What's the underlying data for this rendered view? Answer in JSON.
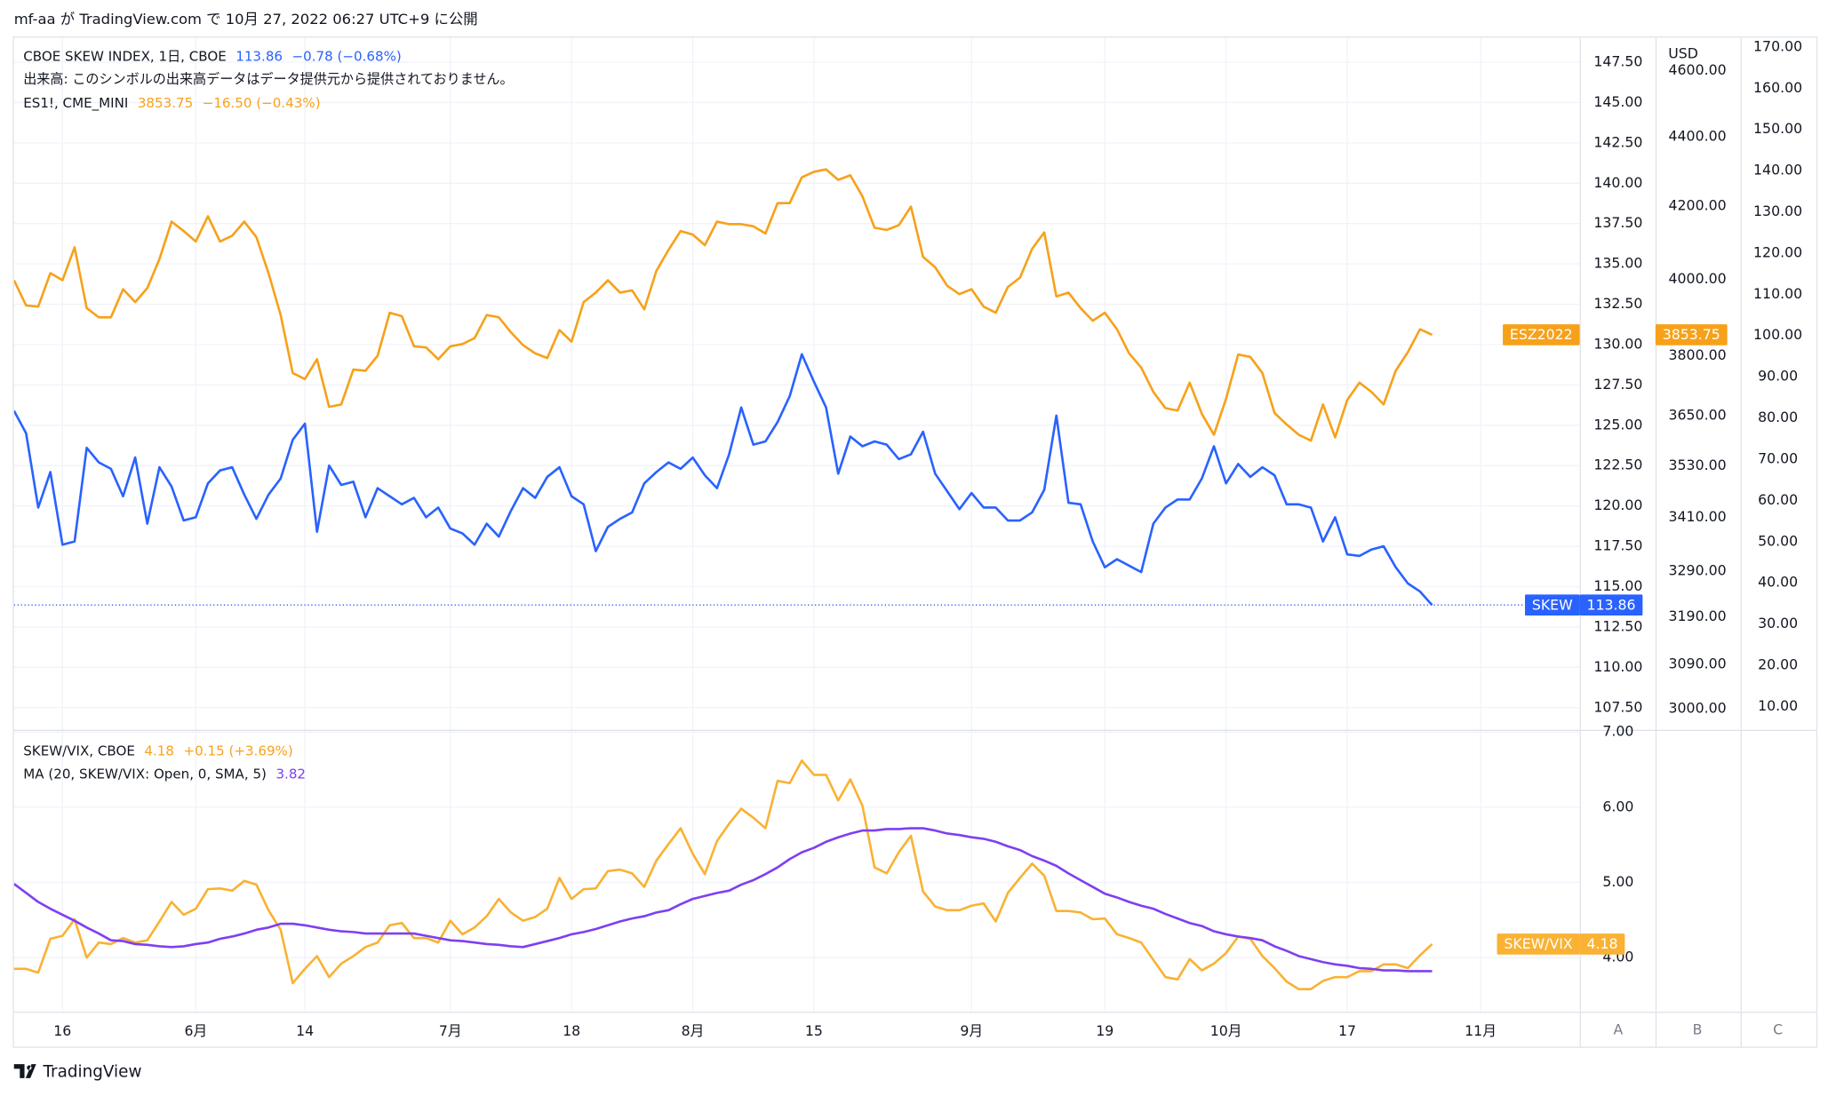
{
  "header": {
    "title": "mf-aa が TradingView.com で 10月 27, 2022 06:27 UTC+9 に公開"
  },
  "footer": {
    "brand": "TradingView"
  },
  "scale_labels": [
    "A",
    "B",
    "C"
  ],
  "chart_data": [
    {
      "type": "line",
      "note": "出来高: このシンボルの出来高データはデータ提供元から提供されておりません。",
      "series": [
        {
          "name": "CBOE SKEW INDEX, 1日, CBOE",
          "tag": "SKEW",
          "change": "−0.78 (−0.68%)",
          "color": "#2962ff",
          "axis": "y",
          "price_line": true,
          "values": [
            125.9,
            124.5,
            119.9,
            122.1,
            117.6,
            117.8,
            123.6,
            122.7,
            122.3,
            120.6,
            123.0,
            118.9,
            122.4,
            121.2,
            119.1,
            119.3,
            121.4,
            122.2,
            122.4,
            120.7,
            119.2,
            120.7,
            121.7,
            124.1,
            125.1,
            118.4,
            122.5,
            121.3,
            121.5,
            119.3,
            121.1,
            120.6,
            120.1,
            120.5,
            119.3,
            119.9,
            118.6,
            118.3,
            117.6,
            118.9,
            118.1,
            119.7,
            121.1,
            120.5,
            121.8,
            122.4,
            120.6,
            120.1,
            117.2,
            118.7,
            119.2,
            119.6,
            121.4,
            122.1,
            122.7,
            122.3,
            123.0,
            121.9,
            121.1,
            123.2,
            126.1,
            123.8,
            124.0,
            125.2,
            126.8,
            129.4,
            127.7,
            126.1,
            122.0,
            124.3,
            123.7,
            124.0,
            123.8,
            122.9,
            123.2,
            124.6,
            122.0,
            120.9,
            119.8,
            120.8,
            119.9,
            119.9,
            119.1,
            119.1,
            119.6,
            121.0,
            125.6,
            120.2,
            120.1,
            117.8,
            116.2,
            116.7,
            116.3,
            115.9,
            118.9,
            119.9,
            120.4,
            120.4,
            121.7,
            123.7,
            121.4,
            122.6,
            121.8,
            122.4,
            121.9,
            120.1,
            120.1,
            119.9,
            117.8,
            119.3,
            117.0,
            116.9,
            117.3,
            117.5,
            116.2,
            115.2,
            114.7,
            113.86,
            null,
            null,
            null,
            null
          ]
        },
        {
          "name": "ES1!, CME_MINI",
          "tag": "ESZ2022",
          "change": "−16.50 (−0.43%)",
          "color": "#f7a11a",
          "axis": "y2",
          "values": [
            3997,
            3930,
            3927,
            4016,
            3997,
            4086,
            3923,
            3899,
            3899,
            3973,
            3939,
            3976,
            4054,
            4157,
            4131,
            4102,
            4172,
            4102,
            4118,
            4157,
            4114,
            4016,
            3905,
            3756,
            3741,
            3791,
            3672,
            3678,
            3765,
            3762,
            3800,
            3911,
            3902,
            3824,
            3821,
            3791,
            3824,
            3830,
            3845,
            3905,
            3899,
            3860,
            3827,
            3806,
            3794,
            3866,
            3836,
            3939,
            3964,
            3997,
            3964,
            3970,
            3920,
            4022,
            4079,
            4131,
            4121,
            4092,
            4157,
            4150,
            4150,
            4144,
            4124,
            4209,
            4209,
            4282,
            4298,
            4305,
            4275,
            4288,
            4228,
            4140,
            4134,
            4147,
            4199,
            4060,
            4032,
            3982,
            3960,
            3973,
            3927,
            3911,
            3979,
            4004,
            4082,
            4127,
            3954,
            3964,
            3923,
            3890,
            3911,
            3868,
            3806,
            3770,
            3709,
            3669,
            3663,
            3732,
            3655,
            3604,
            3692,
            3803,
            3797,
            3756,
            3657,
            3629,
            3604,
            3590,
            3678,
            3598,
            3689,
            3732,
            3709,
            3678,
            3762,
            3809,
            3868,
            3853.75,
            null,
            null,
            null,
            null
          ]
        }
      ],
      "ylim": [
        106.13,
        149.02
      ],
      "yticks": [
        {
          "value": 107.5,
          "label": "107.50"
        },
        {
          "value": 110,
          "label": "110.00"
        },
        {
          "value": 112.5,
          "label": "112.50"
        },
        {
          "value": 115,
          "label": "115.00"
        },
        {
          "value": 117.5,
          "label": "117.50"
        },
        {
          "value": 120,
          "label": "120.00"
        },
        {
          "value": 122.5,
          "label": "122.50"
        },
        {
          "value": 125,
          "label": "125.00"
        },
        {
          "value": 127.5,
          "label": "127.50"
        },
        {
          "value": 130,
          "label": "130.00"
        },
        {
          "value": 132.5,
          "label": "132.50"
        },
        {
          "value": 135,
          "label": "135.00"
        },
        {
          "value": 137.5,
          "label": "137.50"
        },
        {
          "value": 140,
          "label": "140.00"
        },
        {
          "value": 142.5,
          "label": "142.50"
        },
        {
          "value": 145,
          "label": "145.00"
        },
        {
          "value": 147.5,
          "label": "147.50"
        }
      ],
      "y2label": "USD",
      "y2scale": "log",
      "y2lim": [
        2958,
        4702
      ],
      "y2ticks": [
        {
          "value": 3000,
          "label": "3000.00"
        },
        {
          "value": 3090,
          "label": "3090.00"
        },
        {
          "value": 3190,
          "label": "3190.00"
        },
        {
          "value": 3290,
          "label": "3290.00"
        },
        {
          "value": 3410,
          "label": "3410.00"
        },
        {
          "value": 3530,
          "label": "3530.00"
        },
        {
          "value": 3650,
          "label": "3650.00"
        },
        {
          "value": 3800,
          "label": "3800.00"
        },
        {
          "value": 4000,
          "label": "4000.00"
        },
        {
          "value": 4200,
          "label": "4200.00"
        },
        {
          "value": 4400,
          "label": "4400.00"
        },
        {
          "value": 4600,
          "label": "4600.00"
        }
      ],
      "y3lim": [
        4.35,
        172.26
      ],
      "y3ticks": [
        {
          "value": 10,
          "label": "10.00"
        },
        {
          "value": 20,
          "label": "20.00"
        },
        {
          "value": 30,
          "label": "30.00"
        },
        {
          "value": 40,
          "label": "40.00"
        },
        {
          "value": 50,
          "label": "50.00"
        },
        {
          "value": 60,
          "label": "60.00"
        },
        {
          "value": 70,
          "label": "70.00"
        },
        {
          "value": 80,
          "label": "80.00"
        },
        {
          "value": 90,
          "label": "90.00"
        },
        {
          "value": 100,
          "label": "100.00"
        },
        {
          "value": 110,
          "label": "110.00"
        },
        {
          "value": 120,
          "label": "120.00"
        },
        {
          "value": 130,
          "label": "130.00"
        },
        {
          "value": 140,
          "label": "140.00"
        },
        {
          "value": 150,
          "label": "150.00"
        },
        {
          "value": 160,
          "label": "160.00"
        },
        {
          "value": 170,
          "label": "170.00"
        }
      ],
      "grid": true
    },
    {
      "type": "line",
      "categories": [
        null,
        null,
        null,
        null,
        "16",
        null,
        null,
        null,
        null,
        null,
        null,
        null,
        null,
        null,
        null,
        "6月",
        null,
        null,
        null,
        null,
        null,
        null,
        null,
        null,
        "14",
        null,
        null,
        null,
        null,
        null,
        null,
        null,
        null,
        null,
        null,
        null,
        "7月",
        null,
        null,
        null,
        null,
        null,
        null,
        null,
        null,
        null,
        "18",
        null,
        null,
        null,
        null,
        null,
        null,
        null,
        null,
        null,
        "8月",
        null,
        null,
        null,
        null,
        null,
        null,
        null,
        null,
        null,
        "15",
        null,
        null,
        null,
        null,
        null,
        null,
        null,
        null,
        null,
        null,
        null,
        null,
        "9月",
        null,
        null,
        null,
        null,
        null,
        null,
        null,
        null,
        null,
        null,
        "19",
        null,
        null,
        null,
        null,
        null,
        null,
        null,
        null,
        null,
        "10月",
        null,
        null,
        null,
        null,
        null,
        null,
        null,
        null,
        null,
        "17",
        null,
        null,
        null,
        null,
        null,
        null,
        null,
        null,
        null,
        null,
        "11月"
      ],
      "series": [
        {
          "name": "SKEW/VIX, CBOE",
          "tag": "SKEW/VIX",
          "change": "+0.15 (+3.69%)",
          "color": "#f9b233",
          "axis": "y",
          "values": [
            3.85,
            3.85,
            3.8,
            4.25,
            4.29,
            4.51,
            4.0,
            4.2,
            4.18,
            4.26,
            4.2,
            4.23,
            4.48,
            4.74,
            4.57,
            4.65,
            4.91,
            4.92,
            4.89,
            5.02,
            4.97,
            4.63,
            4.37,
            3.66,
            3.85,
            4.02,
            3.74,
            3.92,
            4.02,
            4.14,
            4.2,
            4.43,
            4.46,
            4.26,
            4.26,
            4.2,
            4.49,
            4.31,
            4.4,
            4.55,
            4.78,
            4.6,
            4.49,
            4.54,
            4.65,
            5.06,
            4.78,
            4.91,
            4.92,
            5.15,
            5.17,
            5.12,
            4.94,
            5.29,
            5.51,
            5.72,
            5.38,
            5.11,
            5.55,
            5.78,
            5.98,
            5.86,
            5.72,
            6.35,
            6.32,
            6.62,
            6.43,
            6.43,
            6.09,
            6.37,
            6.02,
            5.2,
            5.12,
            5.4,
            5.62,
            4.88,
            4.68,
            4.63,
            4.63,
            4.69,
            4.72,
            4.48,
            4.86,
            5.06,
            5.25,
            5.09,
            4.62,
            4.62,
            4.6,
            4.51,
            4.52,
            4.31,
            4.26,
            4.2,
            3.97,
            3.74,
            3.71,
            3.98,
            3.83,
            3.92,
            4.06,
            4.28,
            4.25,
            4.02,
            3.86,
            3.68,
            3.58,
            3.58,
            3.69,
            3.74,
            3.74,
            3.82,
            3.82,
            3.91,
            3.91,
            3.86,
            4.03,
            4.18,
            null,
            null,
            null,
            null
          ]
        },
        {
          "name": "MA (20, SKEW/VIX: Open, 0, SMA, 5)",
          "color": "#7e3ff2",
          "axis": "y",
          "values": [
            4.98,
            4.86,
            4.74,
            4.65,
            4.57,
            4.49,
            4.4,
            4.32,
            4.23,
            4.22,
            4.18,
            4.17,
            4.15,
            4.14,
            4.15,
            4.18,
            4.2,
            4.25,
            4.28,
            4.32,
            4.37,
            4.4,
            4.45,
            4.45,
            4.43,
            4.4,
            4.37,
            4.35,
            4.34,
            4.32,
            4.32,
            4.32,
            4.32,
            4.32,
            4.29,
            4.26,
            4.23,
            4.22,
            4.2,
            4.18,
            4.17,
            4.15,
            4.14,
            4.18,
            4.22,
            4.26,
            4.31,
            4.34,
            4.38,
            4.43,
            4.48,
            4.52,
            4.55,
            4.6,
            4.63,
            4.71,
            4.78,
            4.82,
            4.86,
            4.89,
            4.97,
            5.03,
            5.11,
            5.2,
            5.31,
            5.4,
            5.46,
            5.54,
            5.6,
            5.65,
            5.69,
            5.69,
            5.71,
            5.71,
            5.72,
            5.72,
            5.69,
            5.65,
            5.63,
            5.6,
            5.58,
            5.54,
            5.48,
            5.43,
            5.35,
            5.29,
            5.22,
            5.12,
            5.03,
            4.94,
            4.85,
            4.8,
            4.74,
            4.69,
            4.65,
            4.58,
            4.52,
            4.46,
            4.42,
            4.35,
            4.31,
            4.28,
            4.26,
            4.23,
            4.15,
            4.09,
            4.02,
            3.98,
            3.94,
            3.91,
            3.89,
            3.86,
            3.85,
            3.83,
            3.83,
            3.82,
            3.82,
            3.82,
            null,
            null,
            null,
            null
          ]
        }
      ],
      "ylim": [
        3.28,
        7.03
      ],
      "yticks": [
        {
          "value": 4,
          "label": "4.00"
        },
        {
          "value": 5,
          "label": "5.00"
        },
        {
          "value": 6,
          "label": "6.00"
        },
        {
          "value": 7,
          "label": "7.00"
        }
      ],
      "grid": true
    }
  ]
}
